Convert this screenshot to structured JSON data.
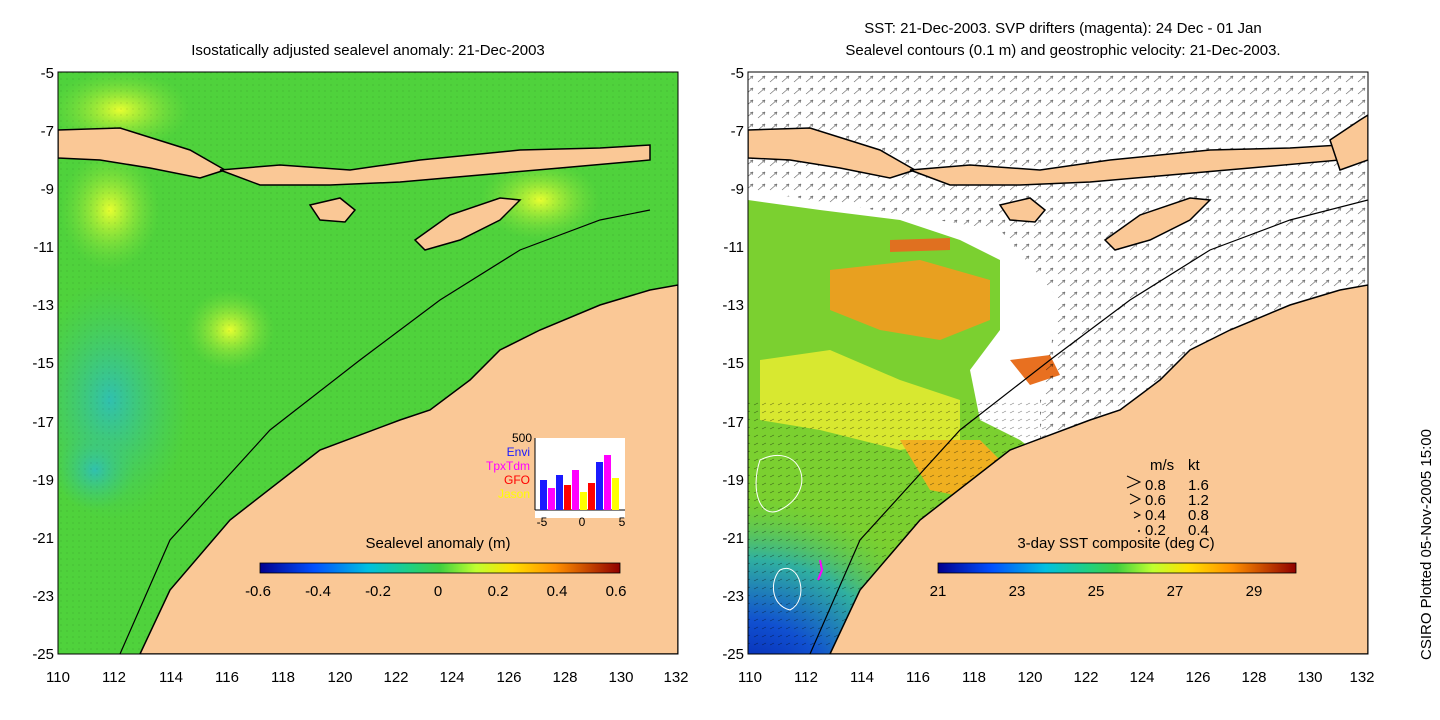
{
  "left_panel": {
    "title": "Isostatically adjusted sealevel anomaly: 21-Dec-2003",
    "colorbar": {
      "label": "Sealevel anomaly (m)",
      "ticks": [
        "-0.6",
        "-0.4",
        "-0.2",
        "0",
        "0.2",
        "0.4",
        "0.6"
      ],
      "range": [
        -0.6,
        0.6
      ]
    },
    "inset": {
      "ymax_label": "500",
      "legend": [
        "Envi",
        "TpxTdm",
        "GFO",
        "Jason"
      ],
      "legend_colors": [
        "#1a1aff",
        "#ff00ff",
        "#ff0000",
        "#ffff00"
      ],
      "xticks": [
        "-5",
        "0",
        "5"
      ]
    }
  },
  "right_panel": {
    "title_line1": "SST: 21-Dec-2003. SVP drifters (magenta): 24 Dec - 01 Jan",
    "title_line2": "Sealevel contours (0.1 m) and geostrophic velocity: 21-Dec-2003.",
    "colorbar": {
      "label": "3-day SST composite (deg C)",
      "ticks": [
        "21",
        "23",
        "25",
        "27",
        "29"
      ],
      "range": [
        21,
        30
      ]
    },
    "velocity_legend": {
      "header_ms": "m/s",
      "header_kt": "kt",
      "rows": [
        {
          "ms": "0.8",
          "kt": "1.6"
        },
        {
          "ms": "0.6",
          "kt": "1.2"
        },
        {
          "ms": "0.4",
          "kt": "0.8"
        },
        {
          "ms": "0.2",
          "kt": "0.4"
        }
      ]
    }
  },
  "axes": {
    "lat_labels": [
      "-5",
      "-7",
      "-9",
      "-11",
      "-13",
      "-15",
      "-17",
      "-19",
      "-21",
      "-23",
      "-25"
    ],
    "lon_labels": [
      "110",
      "112",
      "114",
      "116",
      "118",
      "120",
      "122",
      "124",
      "126",
      "128",
      "130",
      "132"
    ]
  },
  "credit": "CSIRO Plotted 05-Nov-2005 15:00",
  "colors": {
    "land": "#fac896",
    "ocean_green": "#4fd23c",
    "coast": "#000000"
  }
}
